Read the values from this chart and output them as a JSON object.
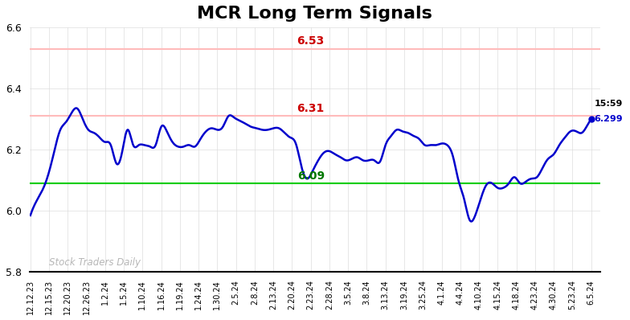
{
  "title": "MCR Long Term Signals",
  "title_fontsize": 16,
  "title_fontweight": "bold",
  "ylim": [
    5.8,
    6.6
  ],
  "yticks": [
    5.8,
    6.0,
    6.2,
    6.4,
    6.6
  ],
  "hline_red1": 6.53,
  "hline_red2": 6.31,
  "hline_green": 6.09,
  "hline_red_color": "#ffbbbb",
  "hline_green_color": "#00cc00",
  "label_red1": "6.53",
  "label_red2": "6.31",
  "label_green": "6.09",
  "last_price": "6.299",
  "last_time": "15:59",
  "watermark": "Stock Traders Daily",
  "watermark_color": "#aaaaaa",
  "line_color": "#0000cc",
  "dot_color": "#0000cc",
  "background_color": "#ffffff",
  "grid_color": "#dddddd",
  "x_labels": [
    "12.12.23",
    "12.15.23",
    "12.20.23",
    "12.26.23",
    "1.2.24",
    "1.5.24",
    "1.10.24",
    "1.16.24",
    "1.19.24",
    "1.24.24",
    "1.30.24",
    "2.5.24",
    "2.8.24",
    "2.13.24",
    "2.20.24",
    "2.23.24",
    "2.28.24",
    "3.5.24",
    "3.8.24",
    "3.13.24",
    "3.19.24",
    "3.25.24",
    "4.1.24",
    "4.4.24",
    "4.10.24",
    "4.15.24",
    "4.18.24",
    "4.23.24",
    "4.30.24",
    "5.23.24",
    "6.5.24"
  ],
  "ctrl_x": [
    0,
    0.4,
    0.8,
    1.2,
    1.6,
    1.9,
    2.2,
    2.5,
    2.8,
    3.1,
    3.4,
    3.7,
    4.0,
    4.3,
    4.6,
    4.9,
    5.2,
    5.5,
    5.8,
    6.1,
    6.4,
    6.7,
    7.0,
    7.3,
    7.6,
    7.9,
    8.2,
    8.5,
    8.8,
    9.1,
    9.4,
    9.7,
    10.0,
    10.3,
    10.6,
    10.9,
    11.2,
    11.5,
    11.8,
    12.1,
    12.4,
    12.7,
    13.0,
    13.3,
    13.6,
    13.9,
    14.2,
    14.5,
    14.8,
    15.1,
    15.4,
    15.7,
    16.0,
    16.3,
    16.6,
    16.9,
    17.2,
    17.5,
    17.8,
    18.1,
    18.4,
    18.7,
    19.0,
    19.3,
    19.6,
    19.9,
    20.2,
    20.5,
    20.8,
    21.1,
    21.4,
    21.7,
    22.0,
    22.3,
    22.6,
    22.9,
    23.2,
    23.5,
    23.8,
    24.1,
    24.4,
    24.7,
    25.0,
    25.3,
    25.6,
    25.9,
    26.2,
    26.5,
    26.8,
    27.1,
    27.4,
    27.7,
    28.0,
    28.3,
    28.6,
    28.9,
    29.2,
    29.5,
    29.8,
    30.0
  ],
  "ctrl_y": [
    5.985,
    6.04,
    6.09,
    6.175,
    6.265,
    6.29,
    6.32,
    6.335,
    6.3,
    6.265,
    6.255,
    6.24,
    6.225,
    6.215,
    6.155,
    6.19,
    6.265,
    6.215,
    6.215,
    6.215,
    6.21,
    6.215,
    6.275,
    6.26,
    6.225,
    6.21,
    6.21,
    6.215,
    6.21,
    6.235,
    6.26,
    6.27,
    6.265,
    6.275,
    6.31,
    6.305,
    6.295,
    6.285,
    6.275,
    6.27,
    6.265,
    6.265,
    6.27,
    6.27,
    6.255,
    6.24,
    6.22,
    6.145,
    6.105,
    6.13,
    6.165,
    6.19,
    6.195,
    6.185,
    6.175,
    6.165,
    6.17,
    6.175,
    6.165,
    6.165,
    6.165,
    6.16,
    6.215,
    6.245,
    6.265,
    6.26,
    6.255,
    6.245,
    6.235,
    6.215,
    6.215,
    6.215,
    6.22,
    6.215,
    6.18,
    6.1,
    6.04,
    5.97,
    5.985,
    6.04,
    6.085,
    6.09,
    6.075,
    6.075,
    6.09,
    6.11,
    6.09,
    6.095,
    6.105,
    6.11,
    6.14,
    6.17,
    6.185,
    6.215,
    6.24,
    6.26,
    6.26,
    6.255,
    6.28,
    6.299
  ]
}
